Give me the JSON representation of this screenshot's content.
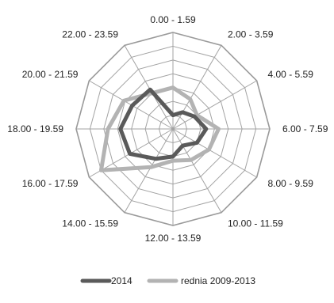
{
  "chart_data": {
    "type": "radar",
    "categories": [
      "0.00 - 1.59",
      "2.00 - 3.59",
      "4.00 - 5.59",
      "6.00 - 7.59",
      "8.00 - 9.59",
      "10.00 - 11.59",
      "12.00 - 13.59",
      "14.00 - 15.59",
      "16.00 - 17.59",
      "18.00 - 19.59",
      "20.00 - 21.59",
      "22.00 - 23.59"
    ],
    "rlim": [
      0,
      7
    ],
    "grid": true,
    "legend_position": "bottom",
    "series": [
      {
        "name": "2014",
        "color": "#5a5a5a",
        "values": [
          1.0,
          1.4,
          1.8,
          2.4,
          2.0,
          1.4,
          2.0,
          2.5,
          3.6,
          3.8,
          3.4,
          3.3
        ]
      },
      {
        "name": "rednia 2009-2013",
        "color": "#b3b3b3",
        "values": [
          3.0,
          2.5,
          2.0,
          3.3,
          3.0,
          2.6,
          2.3,
          3.2,
          6.0,
          4.7,
          4.1,
          3.0
        ]
      }
    ]
  }
}
